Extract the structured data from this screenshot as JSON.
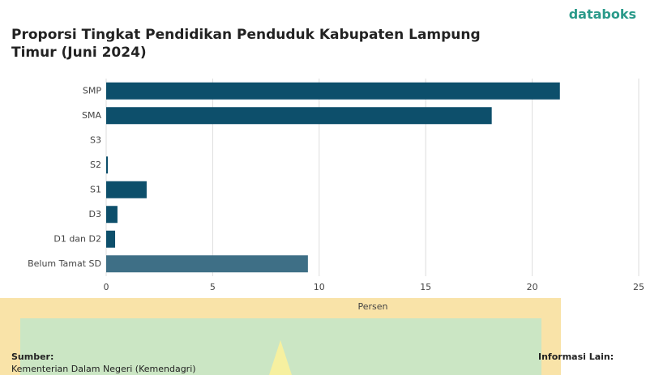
{
  "brand": "databoks",
  "chart_data": {
    "type": "hbar",
    "title": "Proporsi Tingkat Pendidikan Penduduk Kabupaten Lampung Timur (Juni 2024)",
    "categories": [
      "SMP",
      "SMA",
      "S3",
      "S2",
      "S1",
      "D3",
      "D1 dan D2",
      "Belum Tamat SD"
    ],
    "values": [
      21.3,
      18.1,
      0,
      0.08,
      1.9,
      0.53,
      0.42,
      9.47
    ],
    "colors": [
      "#0d4f6b",
      "#0d4f6b",
      "#0d4f6b",
      "#0d4f6b",
      "#0d4f6b",
      "#0d4f6b",
      "#0d4f6b",
      "#3e6f86"
    ],
    "xlim": [
      0,
      25
    ],
    "xticks": [
      0,
      5,
      10,
      15,
      20,
      25
    ],
    "grid": true,
    "xlabel": "Persen"
  },
  "footer": {
    "source_label": "Sumber:",
    "source": "Kementerian Dalam Negeri (Kemendagri)",
    "info_label": "Informasi Lain:"
  }
}
